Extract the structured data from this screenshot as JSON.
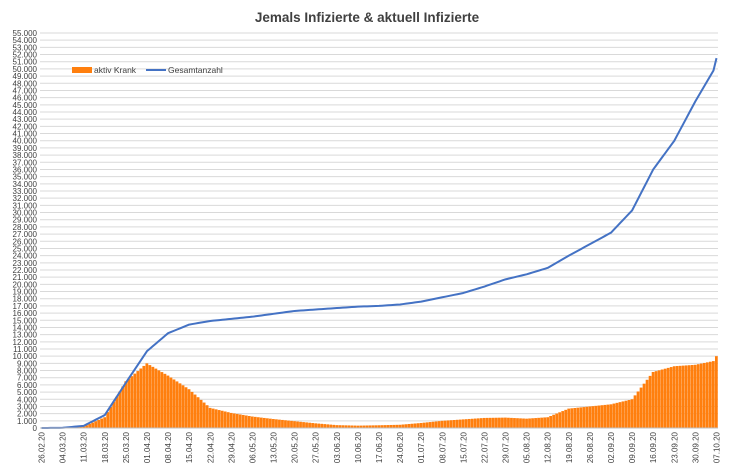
{
  "chart_data": {
    "type": "bar+line",
    "title": "Jemals Infizierte & aktuell Infizierte",
    "xlabel": "",
    "ylabel": "",
    "ylim": [
      0,
      55000
    ],
    "ytick_step": 1000,
    "grid": true,
    "legend_position": "top-left",
    "x_tick_labels": [
      "26.02.20",
      "04.03.20",
      "11.03.20",
      "18.03.20",
      "25.03.20",
      "01.04.20",
      "08.04.20",
      "15.04.20",
      "22.04.20",
      "29.04.20",
      "06.05.20",
      "13.05.20",
      "20.05.20",
      "27.05.20",
      "03.06.20",
      "10.06.20",
      "17.06.20",
      "24.06.20",
      "01.07.20",
      "08.07.20",
      "15.07.20",
      "22.07.20",
      "29.07.20",
      "05.08.20",
      "12.08.20",
      "19.08.20",
      "26.08.20",
      "02.09.20",
      "09.09.20",
      "16.09.20",
      "23.09.20",
      "30.09.20",
      "07.10.20"
    ],
    "series": [
      {
        "name": "aktiv Krank",
        "type": "bar",
        "color": "#ff7f0e",
        "weekly_values": [
          0,
          20,
          200,
          1500,
          6500,
          9000,
          7300,
          5400,
          2800,
          2100,
          1600,
          1250,
          950,
          650,
          400,
          330,
          380,
          450,
          700,
          1000,
          1200,
          1400,
          1450,
          1300,
          1500,
          2700,
          3000,
          3300,
          4000,
          7800,
          8600,
          8800,
          9400
        ],
        "last_value": 10000
      },
      {
        "name": "Gesamtanzahl",
        "type": "line",
        "color": "#4472c4",
        "weekly_values": [
          0,
          30,
          300,
          1800,
          6300,
          10700,
          13200,
          14400,
          14900,
          15200,
          15500,
          15900,
          16300,
          16500,
          16700,
          16900,
          17000,
          17200,
          17600,
          18200,
          18800,
          19700,
          20700,
          21400,
          22300,
          24000,
          25600,
          27200,
          30300,
          36000,
          40000,
          45500,
          50500
        ],
        "last_value": 51500
      }
    ]
  }
}
